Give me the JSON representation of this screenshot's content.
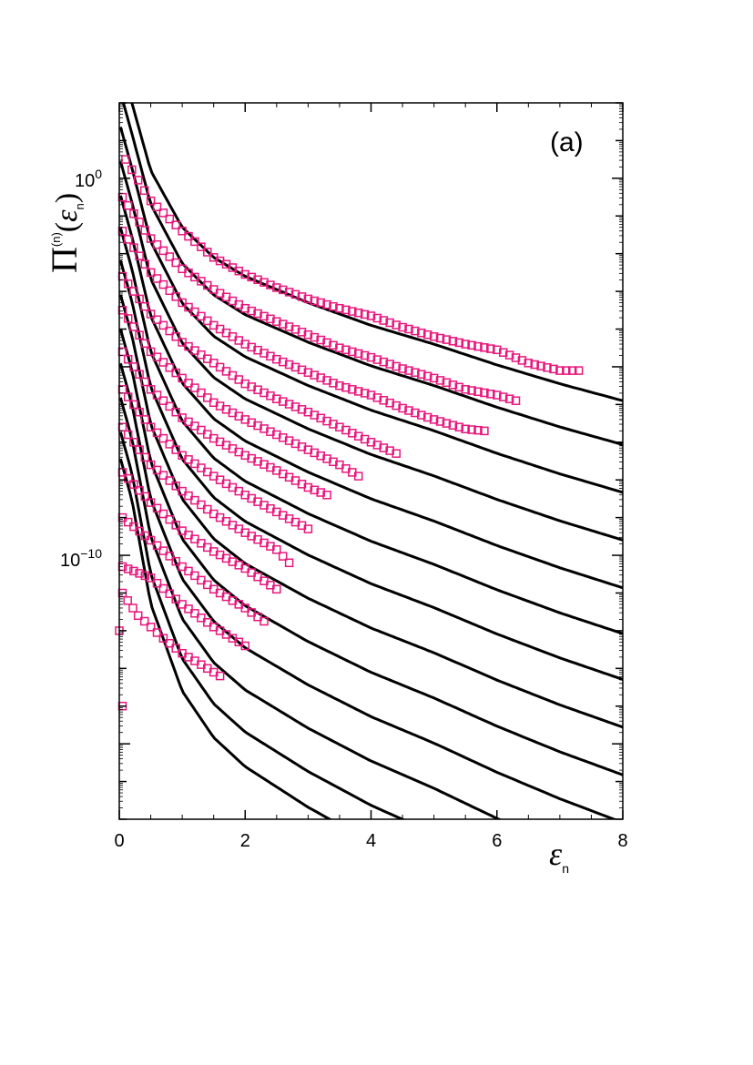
{
  "chart_data": {
    "type": "scatter",
    "panel_label": "(a)",
    "ylabel": {
      "symbol": "Π",
      "superscript": "(n)",
      "arg": "ε",
      "arg_sub": "n"
    },
    "xlabel": {
      "symbol": "ε",
      "sub": "n"
    },
    "xlim": [
      0,
      8
    ],
    "ylim_log10": [
      -17,
      2
    ],
    "y_scale": "log",
    "x_ticks": [
      "0",
      "2",
      "4",
      "6",
      "8"
    ],
    "x_tick_values": [
      0,
      2,
      4,
      6,
      8
    ],
    "y_tick_labels": [
      {
        "base": "10",
        "exp": "0",
        "value_log10": 0
      },
      {
        "base": "10",
        "exp": "−10",
        "value_log10": -10
      }
    ],
    "grid": false,
    "colors": {
      "data": "#e8177d",
      "curve": "#000000"
    },
    "curve_series": [
      {
        "offset_log10": 0,
        "x": [
          0.2,
          0.5,
          1,
          1.5,
          2,
          2.5,
          3,
          4,
          5,
          6,
          7,
          8
        ],
        "y_log10": [
          2.0,
          0.2,
          -1.3,
          -2.1,
          -2.6,
          -2.95,
          -3.3,
          -3.9,
          -4.4,
          -4.95,
          -5.45,
          -5.9
        ]
      }
    ],
    "series": [
      {
        "curve_offset_log10": 0,
        "x": [
          0.1,
          0.5,
          1,
          1.5,
          2,
          2.5,
          3,
          3.5,
          4,
          4.5,
          5,
          5.5,
          6,
          6.5,
          7,
          7.3
        ],
        "y_log10": [
          0.5,
          -0.6,
          -1.4,
          -2.1,
          -2.55,
          -2.9,
          -3.2,
          -3.45,
          -3.65,
          -3.95,
          -4.2,
          -4.4,
          -4.55,
          -4.9,
          -5.1,
          -5.1
        ]
      },
      {
        "curve_offset_log10": -0.9,
        "x": [
          0.05,
          0.5,
          1,
          1.5,
          2,
          2.5,
          3,
          3.5,
          4,
          4.5,
          5,
          5.5,
          6,
          6.3
        ],
        "y_log10": [
          -0.5,
          -1.6,
          -2.4,
          -2.95,
          -3.45,
          -3.8,
          -4.15,
          -4.5,
          -4.75,
          -5.05,
          -5.3,
          -5.6,
          -5.75,
          -5.9
        ]
      },
      {
        "curve_offset_log10": -1.9,
        "x": [
          0.05,
          0.5,
          1,
          1.5,
          2,
          2.5,
          3,
          3.5,
          4,
          4.5,
          5,
          5.5,
          5.8
        ],
        "y_log10": [
          -1.4,
          -2.5,
          -3.3,
          -3.9,
          -4.4,
          -4.8,
          -5.15,
          -5.5,
          -5.75,
          -6.1,
          -6.4,
          -6.65,
          -6.7
        ]
      },
      {
        "curve_offset_log10": -2.9,
        "x": [
          0.05,
          0.5,
          1,
          1.5,
          2,
          2.5,
          3,
          3.5,
          4,
          4.4
        ],
        "y_log10": [
          -2.6,
          -3.6,
          -4.35,
          -4.9,
          -5.45,
          -5.85,
          -6.2,
          -6.6,
          -7.0,
          -7.3
        ]
      },
      {
        "curve_offset_log10": -3.9,
        "x": [
          0.05,
          0.5,
          1,
          1.5,
          2,
          2.5,
          3,
          3.5,
          3.8
        ],
        "y_log10": [
          -3.5,
          -4.6,
          -5.3,
          -5.95,
          -6.4,
          -6.8,
          -7.2,
          -7.6,
          -7.9
        ]
      },
      {
        "curve_offset_log10": -4.85,
        "x": [
          0.05,
          0.5,
          1,
          1.5,
          2,
          2.5,
          3,
          3.3
        ],
        "y_log10": [
          -4.6,
          -5.6,
          -6.35,
          -6.9,
          -7.35,
          -7.75,
          -8.2,
          -8.4
        ]
      },
      {
        "curve_offset_log10": -5.8,
        "x": [
          0.05,
          0.5,
          1,
          1.5,
          2,
          2.5,
          3
        ],
        "y_log10": [
          -5.6,
          -6.6,
          -7.35,
          -7.9,
          -8.4,
          -8.85,
          -9.3
        ]
      },
      {
        "curve_offset_log10": -6.8,
        "x": [
          0.05,
          0.5,
          1,
          1.5,
          2,
          2.5,
          2.7
        ],
        "y_log10": [
          -6.6,
          -7.6,
          -8.3,
          -8.9,
          -9.4,
          -9.85,
          -10.2
        ]
      },
      {
        "curve_offset_log10": -7.8,
        "x": [
          0.05,
          0.5,
          1,
          1.5,
          2,
          2.5
        ],
        "y_log10": [
          -7.8,
          -8.6,
          -9.35,
          -9.9,
          -10.35,
          -10.9
        ]
      },
      {
        "curve_offset_log10": -8.8,
        "x": [
          0.05,
          0.5,
          1,
          1.5,
          2,
          2.3
        ],
        "y_log10": [
          -9.0,
          -9.6,
          -10.3,
          -10.9,
          -11.4,
          -11.75
        ]
      },
      {
        "curve_offset_log10": -9.8,
        "x": [
          0.05,
          0.5,
          1,
          1.5,
          2
        ],
        "y_log10": [
          -10.3,
          -10.6,
          -11.3,
          -11.9,
          -12.4
        ]
      },
      {
        "curve_offset_log10": -10.8,
        "x": [
          0.05,
          0.3,
          0.7,
          1,
          1.5,
          1.6
        ],
        "y_log10": [
          -11.0,
          -11.6,
          -12.2,
          -12.6,
          -13.1,
          -13.2
        ]
      },
      {
        "curve_offset_log10": -11.6,
        "x": [
          0.0,
          0.05
        ],
        "y_log10": [
          -12.0,
          -14.0
        ]
      }
    ]
  }
}
